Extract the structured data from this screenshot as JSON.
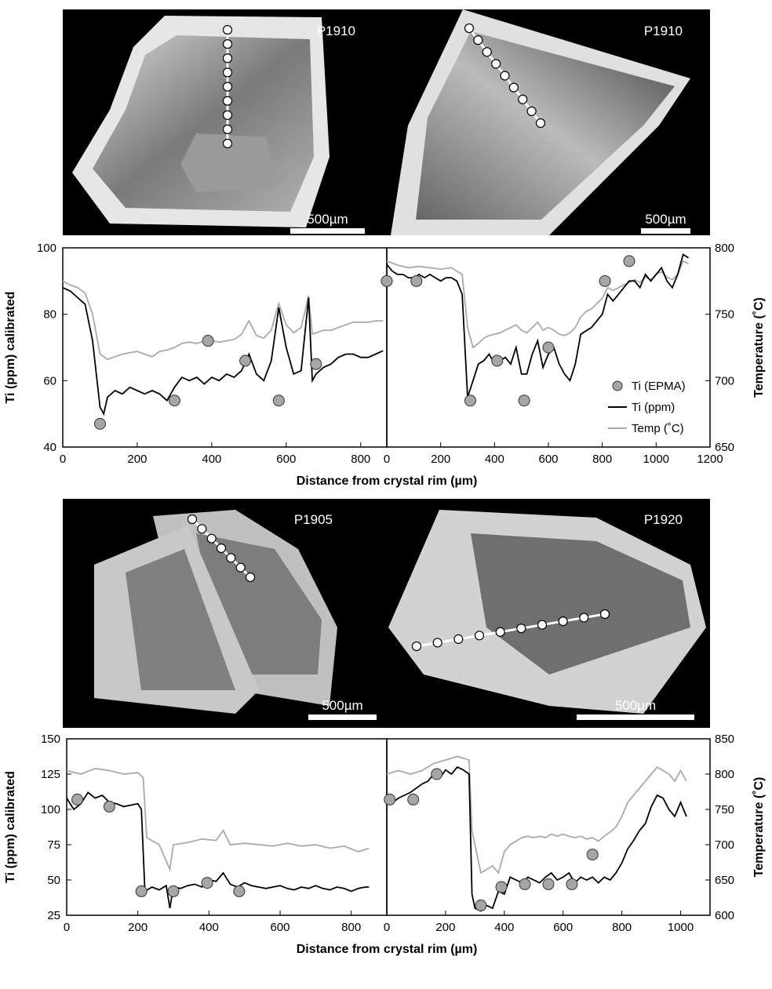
{
  "images": [
    {
      "label": "P1910",
      "scale": "500µm"
    },
    {
      "label": "P1910",
      "scale": "500µm"
    },
    {
      "label": "P1905",
      "scale": "500µm"
    },
    {
      "label": "P1920",
      "scale": "500µm"
    }
  ],
  "chart_data": [
    {
      "type": "line",
      "y_label": "Ti  (ppm) calibrated",
      "x_label": "Distance from crystal rim (µm)",
      "xlim": [
        0,
        870
      ],
      "xticks": [
        0,
        200,
        400,
        600,
        800
      ],
      "ylim": [
        40,
        100
      ],
      "yticks": [
        40,
        60,
        80,
        100
      ],
      "y2lim": [
        650,
        800
      ],
      "series": [
        {
          "type": "line",
          "color": "#aaaaaa",
          "axis": "y2",
          "x": [
            0,
            20,
            40,
            60,
            80,
            100,
            120,
            140,
            160,
            180,
            200,
            220,
            240,
            260,
            280,
            300,
            320,
            340,
            360,
            380,
            400,
            420,
            440,
            460,
            480,
            500,
            520,
            540,
            560,
            580,
            600,
            620,
            640,
            660,
            670,
            680,
            700,
            720,
            740,
            760,
            780,
            800,
            820,
            840,
            860
          ],
          "values": [
            775,
            772,
            770,
            766,
            750,
            720,
            716,
            718,
            720,
            721,
            722,
            720,
            718,
            722,
            723,
            725,
            728,
            729,
            728,
            730,
            730,
            729,
            730,
            731,
            735,
            745,
            734,
            732,
            738,
            758,
            742,
            736,
            740,
            764,
            735,
            736,
            738,
            738,
            740,
            742,
            744,
            744,
            744,
            745,
            745
          ]
        },
        {
          "type": "line",
          "color": "#000000",
          "x": [
            0,
            20,
            40,
            60,
            80,
            100,
            110,
            120,
            140,
            160,
            180,
            200,
            220,
            240,
            260,
            280,
            300,
            320,
            340,
            360,
            380,
            400,
            420,
            440,
            460,
            480,
            500,
            520,
            540,
            560,
            580,
            600,
            620,
            640,
            660,
            670,
            680,
            700,
            720,
            740,
            760,
            780,
            800,
            820,
            840,
            860
          ],
          "values": [
            88,
            87,
            85,
            83,
            72,
            52,
            50,
            55,
            57,
            56,
            58,
            57,
            56,
            57,
            56,
            54,
            58,
            61,
            60,
            61,
            59,
            61,
            60,
            62,
            61,
            63,
            68,
            62,
            60,
            66,
            82,
            70,
            62,
            63,
            85,
            60,
            62,
            64,
            65,
            67,
            68,
            68,
            67,
            67,
            68,
            69
          ]
        },
        {
          "type": "scatter",
          "color": "#a6a6a6",
          "x": [
            100,
            300,
            390,
            490,
            580,
            680
          ],
          "values": [
            47,
            54,
            72,
            66,
            54,
            65
          ]
        }
      ]
    },
    {
      "type": "line",
      "y2_label": "Temperature (˚C)",
      "legend": "right",
      "xlim": [
        0,
        1200
      ],
      "xticks": [
        0,
        200,
        400,
        600,
        800,
        1000,
        1200
      ],
      "ylim": [
        40,
        100
      ],
      "y2lim": [
        650,
        800
      ],
      "y2ticks": [
        650,
        700,
        750,
        800
      ],
      "series": [
        {
          "type": "line",
          "name": "Temp (˚C)",
          "color": "#aaaaaa",
          "axis": "y2",
          "x": [
            0,
            40,
            80,
            120,
            160,
            200,
            240,
            280,
            300,
            320,
            340,
            360,
            380,
            400,
            420,
            440,
            460,
            480,
            500,
            520,
            540,
            560,
            580,
            600,
            620,
            640,
            660,
            680,
            700,
            720,
            740,
            760,
            780,
            800,
            820,
            840,
            860,
            880,
            900,
            920,
            940,
            960,
            980,
            1000,
            1020,
            1040,
            1060,
            1080,
            1100,
            1120
          ],
          "values": [
            790,
            787,
            785,
            786,
            785,
            784,
            785,
            780,
            740,
            725,
            728,
            732,
            734,
            735,
            736,
            738,
            740,
            742,
            738,
            736,
            740,
            744,
            738,
            740,
            738,
            735,
            734,
            736,
            740,
            748,
            752,
            754,
            758,
            762,
            770,
            768,
            770,
            772,
            774,
            776,
            774,
            778,
            776,
            780,
            782,
            778,
            776,
            780,
            790,
            788
          ]
        },
        {
          "type": "line",
          "name": "Ti (ppm)",
          "color": "#000000",
          "x": [
            0,
            20,
            40,
            60,
            80,
            100,
            120,
            140,
            160,
            180,
            200,
            220,
            240,
            260,
            280,
            300,
            320,
            340,
            360,
            380,
            400,
            420,
            440,
            460,
            480,
            500,
            520,
            540,
            560,
            580,
            600,
            620,
            640,
            660,
            680,
            700,
            720,
            740,
            760,
            780,
            800,
            820,
            840,
            860,
            880,
            900,
            920,
            940,
            960,
            980,
            1000,
            1020,
            1040,
            1060,
            1080,
            1100,
            1120
          ],
          "values": [
            95,
            93,
            92,
            92,
            91,
            91,
            92,
            91,
            92,
            91,
            90,
            91,
            91,
            90,
            86,
            55,
            60,
            65,
            66,
            68,
            65,
            66,
            67,
            65,
            70,
            62,
            62,
            68,
            72,
            64,
            68,
            70,
            65,
            62,
            60,
            65,
            74,
            75,
            76,
            78,
            80,
            86,
            84,
            86,
            88,
            90,
            90,
            88,
            92,
            90,
            92,
            94,
            90,
            88,
            92,
            98,
            97
          ]
        },
        {
          "type": "scatter",
          "name": "Ti (EPMA)",
          "color": "#a6a6a6",
          "x": [
            0,
            110,
            310,
            410,
            510,
            600,
            810,
            900
          ],
          "values": [
            90,
            90,
            54,
            66,
            54,
            70,
            90,
            96
          ]
        }
      ]
    },
    {
      "type": "line",
      "y_label": "Ti  (ppm) calibrated",
      "x_label": "Distance from crystal rim (µm)",
      "xlim": [
        0,
        900
      ],
      "xticks": [
        0,
        200,
        400,
        600,
        800
      ],
      "ylim": [
        25,
        150
      ],
      "yticks": [
        25,
        50,
        75,
        100,
        125,
        150
      ],
      "y2lim": [
        600,
        850
      ],
      "series": [
        {
          "type": "line",
          "color": "#aaaaaa",
          "axis": "y2",
          "x": [
            0,
            40,
            80,
            120,
            160,
            200,
            215,
            225,
            260,
            290,
            300,
            340,
            380,
            420,
            440,
            460,
            500,
            540,
            580,
            620,
            660,
            700,
            740,
            780,
            820,
            850
          ],
          "values": [
            805,
            800,
            808,
            805,
            800,
            802,
            795,
            710,
            700,
            665,
            700,
            703,
            708,
            706,
            720,
            700,
            702,
            700,
            698,
            702,
            698,
            700,
            695,
            698,
            690,
            695
          ]
        },
        {
          "type": "line",
          "color": "#000000",
          "x": [
            0,
            20,
            40,
            60,
            80,
            100,
            120,
            140,
            160,
            180,
            200,
            210,
            220,
            240,
            260,
            280,
            290,
            300,
            320,
            340,
            360,
            380,
            400,
            420,
            440,
            460,
            480,
            500,
            520,
            540,
            560,
            580,
            600,
            620,
            640,
            660,
            680,
            700,
            720,
            740,
            760,
            780,
            800,
            820,
            840,
            850
          ],
          "values": [
            108,
            100,
            104,
            112,
            108,
            110,
            105,
            104,
            102,
            103,
            104,
            100,
            42,
            45,
            43,
            46,
            30,
            45,
            44,
            46,
            47,
            45,
            50,
            49,
            55,
            47,
            45,
            48,
            46,
            45,
            44,
            45,
            46,
            44,
            43,
            45,
            44,
            46,
            44,
            43,
            45,
            44,
            42,
            44,
            45,
            45
          ]
        },
        {
          "type": "scatter",
          "color": "#a6a6a6",
          "x": [
            30,
            120,
            210,
            300,
            395,
            485
          ],
          "values": [
            107,
            102,
            42,
            42,
            48,
            42
          ]
        }
      ]
    },
    {
      "type": "line",
      "y2_label": "Temperature (˚C)",
      "xlim": [
        0,
        1100
      ],
      "xticks": [
        0,
        200,
        400,
        600,
        800,
        1000
      ],
      "ylim": [
        25,
        150
      ],
      "y2lim": [
        600,
        850
      ],
      "y2ticks": [
        600,
        650,
        700,
        750,
        800,
        850
      ],
      "series": [
        {
          "type": "line",
          "color": "#aaaaaa",
          "axis": "y2",
          "x": [
            0,
            40,
            80,
            120,
            160,
            200,
            240,
            280,
            290,
            320,
            360,
            380,
            400,
            420,
            440,
            460,
            480,
            500,
            520,
            540,
            560,
            580,
            600,
            620,
            640,
            660,
            680,
            700,
            720,
            740,
            760,
            780,
            800,
            820,
            840,
            860,
            880,
            900,
            920,
            940,
            960,
            980,
            1000,
            1020
          ],
          "values": [
            800,
            805,
            800,
            805,
            815,
            820,
            825,
            820,
            720,
            660,
            670,
            660,
            690,
            700,
            705,
            710,
            712,
            710,
            712,
            710,
            715,
            712,
            715,
            712,
            710,
            712,
            708,
            710,
            705,
            712,
            718,
            725,
            740,
            760,
            770,
            780,
            790,
            800,
            810,
            805,
            800,
            790,
            805,
            790
          ]
        },
        {
          "type": "line",
          "color": "#000000",
          "x": [
            0,
            20,
            40,
            60,
            80,
            100,
            120,
            140,
            160,
            180,
            200,
            220,
            240,
            260,
            280,
            290,
            300,
            320,
            340,
            360,
            380,
            400,
            420,
            440,
            460,
            480,
            500,
            520,
            540,
            560,
            580,
            600,
            620,
            640,
            660,
            680,
            700,
            720,
            740,
            760,
            780,
            800,
            820,
            840,
            860,
            880,
            900,
            920,
            940,
            960,
            980,
            1000,
            1020
          ],
          "values": [
            110,
            105,
            108,
            110,
            112,
            115,
            118,
            120,
            125,
            122,
            128,
            125,
            130,
            128,
            125,
            40,
            30,
            28,
            32,
            30,
            42,
            40,
            52,
            50,
            48,
            52,
            50,
            48,
            52,
            55,
            50,
            52,
            55,
            48,
            52,
            50,
            52,
            48,
            52,
            50,
            55,
            62,
            72,
            78,
            85,
            90,
            102,
            110,
            108,
            100,
            95,
            105,
            95
          ]
        },
        {
          "type": "scatter",
          "color": "#a6a6a6",
          "x": [
            10,
            90,
            170,
            320,
            390,
            470,
            550,
            630,
            700
          ],
          "values": [
            107,
            107,
            125,
            32,
            45,
            47,
            47,
            47,
            68
          ]
        }
      ]
    }
  ]
}
